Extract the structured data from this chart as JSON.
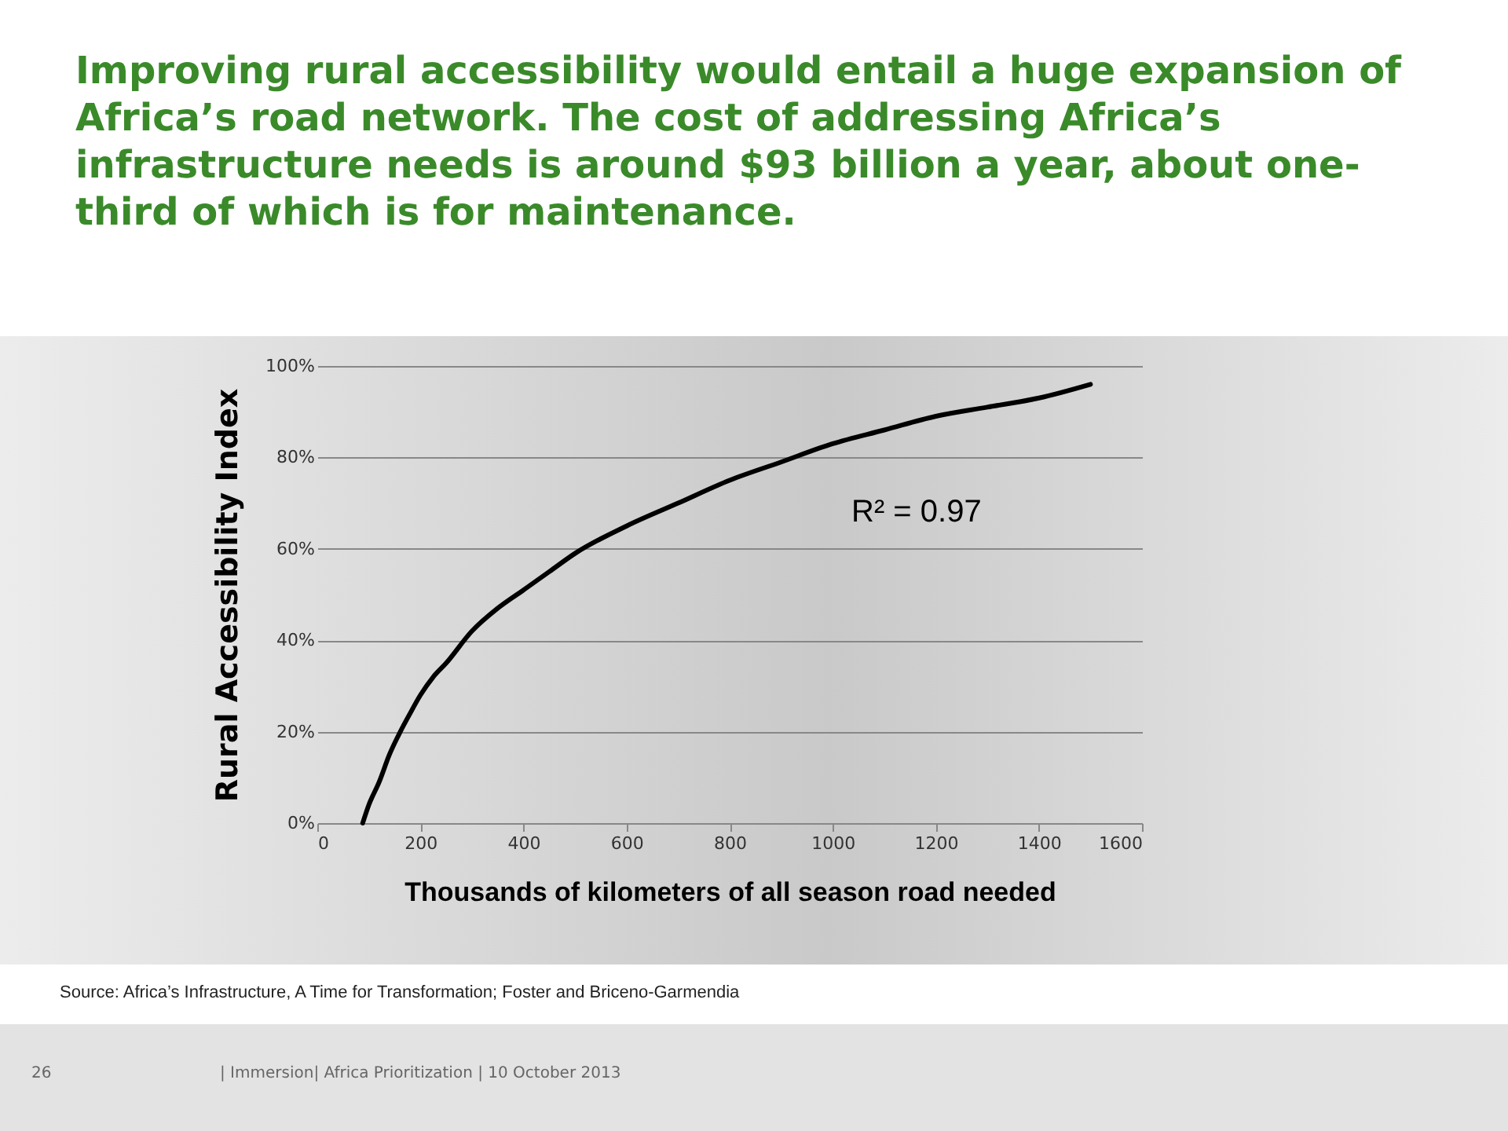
{
  "chart_data": {
    "type": "line",
    "title": "Improving rural accessibility would entail a huge expansion of Africa’s road network. The cost of addressing Africa’s infrastructure needs is around $93 billion a year, about one-third of which is for maintenance.",
    "xlabel": "Thousands of kilometers of all season road needed",
    "ylabel": "Rural Accessibility Index",
    "x": [
      88,
      100,
      120,
      140,
      161,
      180,
      200,
      225,
      250,
      300,
      350,
      400,
      450,
      500,
      600,
      700,
      800,
      900,
      1000,
      1100,
      1200,
      1300,
      1400,
      1500
    ],
    "series": [
      {
        "color": "#000000",
        "values": [
          0,
          4,
          9,
          15,
          20,
          24,
          28,
          32,
          35,
          42,
          47,
          51,
          55,
          59,
          65,
          70,
          75,
          79,
          83,
          86,
          89,
          91,
          93,
          96
        ]
      }
    ],
    "xlim": [
      0,
      1600
    ],
    "xticks": [
      0,
      200,
      400,
      600,
      800,
      1000,
      1200,
      1400,
      1600
    ],
    "ylim": [
      0,
      100
    ],
    "yticks": [
      {
        "value": 0,
        "label": "0%"
      },
      {
        "value": 20,
        "label": "20%"
      },
      {
        "value": 40,
        "label": "40%"
      },
      {
        "value": 60,
        "label": "60%"
      },
      {
        "value": 80,
        "label": "80%"
      },
      {
        "value": 100,
        "label": "100%"
      }
    ],
    "grid": "y",
    "marker": "none",
    "line_style": "solid",
    "annotations": [
      "R² = 0.97",
      "Source:  Africa’s Infrastructure, A Time for Transformation; Foster and Briceno-Garmendia",
      "26",
      "| Immersion| Africa Prioritization | 10 October 2013"
    ]
  }
}
